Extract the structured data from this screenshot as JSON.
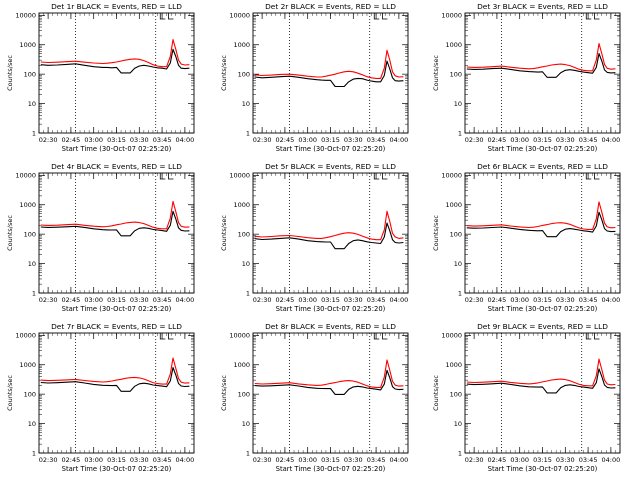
{
  "figure": {
    "panel_titles": [
      "Det 1r BLACK = Events, RED = LLD",
      "Det 2r BLACK = Events, RED = LLD",
      "Det 3r BLACK = Events, RED = LLD",
      "Det 4r BLACK = Events, RED = LLD",
      "Det 5r BLACK = Events, RED = LLD",
      "Det 6r BLACK = Events, RED = LLD",
      "Det 7r BLACK = Events, RED = LLD",
      "Det 8r BLACK = Events, RED = LLD",
      "Det 9r BLACK = Events, RED = LLD"
    ],
    "ylabel": "Counts/sec",
    "xlabel": "Start Time (30-Oct-07 02:25:20)"
  },
  "colors": {
    "events": "#000000",
    "lld": "#ff0000",
    "axes": "#000000"
  },
  "chart_data": {
    "type": "line",
    "layout": "3x3 grid",
    "yscale": "log",
    "ylim": [
      1,
      12000
    ],
    "xlim": [
      2.4,
      4.1
    ],
    "xtick_values": [
      2.5,
      2.75,
      3.0,
      3.25,
      3.5,
      3.75,
      4.0
    ],
    "xtick_labels": [
      "02:30",
      "02:45",
      "03:00",
      "03:15",
      "03:30",
      "03:45",
      "04:00"
    ],
    "ytick_values": [
      1,
      10,
      100,
      1000,
      10000
    ],
    "ytick_labels": [
      "1",
      "10",
      "100",
      "1000",
      "10000"
    ],
    "vlines_dotted": [
      2.8,
      3.68
    ],
    "bracket_times": [
      3.73,
      3.82
    ],
    "x": [
      2.42,
      2.5,
      2.6,
      2.7,
      2.8,
      2.9,
      3.0,
      3.1,
      3.15,
      3.2,
      3.25,
      3.3,
      3.35,
      3.4,
      3.45,
      3.5,
      3.55,
      3.6,
      3.65,
      3.7,
      3.75,
      3.8,
      3.84,
      3.87,
      3.9,
      3.93,
      3.96,
      4.0,
      4.05
    ],
    "panels": [
      {
        "title": "Det 1r BLACK = Events, RED = LLD",
        "series": [
          {
            "name": "Events",
            "values": [
              210,
              200,
              205,
              215,
              225,
              200,
              180,
              170,
              170,
              165,
              170,
              110,
              110,
              110,
              160,
              190,
              200,
              190,
              175,
              165,
              160,
              150,
              240,
              700,
              400,
              200,
              160,
              155,
              160
            ]
          },
          {
            "name": "LLD",
            "values": [
              260,
              250,
              255,
              265,
              275,
              255,
              240,
              230,
              235,
              245,
              260,
              280,
              300,
              320,
              330,
              320,
              290,
              250,
              210,
              190,
              180,
              180,
              400,
              1500,
              700,
              300,
              220,
              205,
              210
            ]
          }
        ]
      },
      {
        "title": "Det 2r BLACK = Events, RED = LLD",
        "series": [
          {
            "name": "Events",
            "values": [
              80,
              75,
              78,
              82,
              85,
              78,
              70,
              65,
              63,
              62,
              62,
              38,
              38,
              38,
              55,
              68,
              72,
              70,
              63,
              58,
              55,
              55,
              90,
              280,
              150,
              75,
              60,
              58,
              60
            ]
          },
          {
            "name": "LLD",
            "values": [
              95,
              90,
              93,
              98,
              100,
              93,
              85,
              80,
              80,
              85,
              92,
              100,
              110,
              120,
              125,
              120,
              108,
              95,
              82,
              75,
              72,
              72,
              160,
              650,
              300,
              120,
              88,
              80,
              82
            ]
          }
        ]
      },
      {
        "title": "Det 3r BLACK = Events, RED = LLD",
        "series": [
          {
            "name": "Events",
            "values": [
              150,
              145,
              148,
              155,
              160,
              145,
              130,
              122,
              120,
              118,
              120,
              78,
              78,
              78,
              112,
              135,
              142,
              135,
              125,
              118,
              112,
              108,
              170,
              500,
              280,
              140,
              115,
              110,
              112
            ]
          },
          {
            "name": "LLD",
            "values": [
              175,
              170,
              173,
              180,
              188,
              172,
              160,
              152,
              155,
              165,
              178,
              190,
              205,
              215,
              220,
              212,
              195,
              170,
              148,
              135,
              130,
              130,
              300,
              1100,
              500,
              215,
              158,
              148,
              152
            ]
          }
        ]
      },
      {
        "title": "Det 4r BLACK = Events, RED = LLD",
        "series": [
          {
            "name": "Events",
            "values": [
              175,
              170,
              172,
              178,
              185,
              170,
              152,
              142,
              140,
              138,
              140,
              88,
              88,
              88,
              130,
              158,
              165,
              158,
              145,
              138,
              132,
              125,
              200,
              600,
              330,
              165,
              135,
              128,
              130
            ]
          },
          {
            "name": "LLD",
            "values": [
              205,
              198,
              202,
              210,
              218,
              200,
              186,
              178,
              182,
              192,
              208,
              222,
              240,
              252,
              258,
              248,
              228,
              198,
              172,
              158,
              152,
              152,
              350,
              1300,
              580,
              250,
              185,
              172,
              176
            ]
          }
        ]
      },
      {
        "title": "Det 5r BLACK = Events, RED = LLD",
        "series": [
          {
            "name": "Events",
            "values": [
              70,
              66,
              68,
              72,
              75,
              68,
              60,
              56,
              55,
              54,
              54,
              32,
              32,
              32,
              48,
              60,
              64,
              60,
              55,
              52,
              50,
              48,
              80,
              240,
              130,
              65,
              52,
              50,
              52
            ]
          },
          {
            "name": "LLD",
            "values": [
              85,
              80,
              83,
              88,
              90,
              83,
              76,
              72,
              72,
              76,
              82,
              90,
              100,
              108,
              112,
              108,
              98,
              86,
              75,
              68,
              65,
              65,
              140,
              600,
              270,
              108,
              80,
              72,
              75
            ]
          }
        ]
      },
      {
        "title": "Det 6r BLACK = Events, RED = LLD",
        "series": [
          {
            "name": "Events",
            "values": [
              165,
              160,
              162,
              168,
              175,
              160,
              145,
              135,
              132,
              130,
              132,
              82,
              82,
              82,
              122,
              148,
              155,
              148,
              138,
              130,
              125,
              118,
              190,
              560,
              310,
              155,
              128,
              122,
              124
            ]
          },
          {
            "name": "LLD",
            "values": [
              195,
              188,
              192,
              200,
              208,
              190,
              176,
              168,
              172,
              182,
              198,
              212,
              228,
              240,
              246,
              236,
              216,
              188,
              163,
              150,
              145,
              145,
              330,
              1250,
              560,
              240,
              176,
              164,
              168
            ]
          }
        ]
      },
      {
        "title": "Det 7r BLACK = Events, RED = LLD",
        "series": [
          {
            "name": "Events",
            "values": [
              250,
              240,
              245,
              255,
              265,
              240,
              215,
              200,
              198,
              195,
              198,
              125,
              125,
              125,
              185,
              225,
              235,
              225,
              205,
              195,
              188,
              180,
              280,
              800,
              450,
              230,
              190,
              182,
              186
            ]
          },
          {
            "name": "LLD",
            "values": [
              300,
              290,
              295,
              305,
              318,
              292,
              272,
              260,
              265,
              280,
              300,
              320,
              345,
              362,
              370,
              356,
              328,
              285,
              248,
              228,
              220,
              220,
              480,
              1700,
              760,
              340,
              255,
              238,
              244
            ]
          }
        ]
      },
      {
        "title": "Det 8r BLACK = Events, RED = LLD",
        "series": [
          {
            "name": "Events",
            "values": [
              195,
              188,
              192,
              200,
              208,
              190,
              170,
              158,
              156,
              154,
              156,
              98,
              98,
              98,
              145,
              176,
              185,
              176,
              162,
              154,
              148,
              140,
              220,
              650,
              360,
              180,
              150,
              143,
              146
            ]
          },
          {
            "name": "LLD",
            "values": [
              230,
              222,
              226,
              235,
              245,
              224,
              208,
              198,
              202,
              214,
              232,
              248,
              268,
              282,
              290,
              278,
              255,
              222,
              192,
              176,
              170,
              170,
              380,
              1450,
              640,
              275,
              202,
              188,
              193
            ]
          }
        ]
      },
      {
        "title": "Det 9r BLACK = Events, RED = LLD",
        "series": [
          {
            "name": "Events",
            "values": [
              220,
              212,
              216,
              225,
              235,
              214,
              192,
              178,
              176,
              174,
              176,
              110,
              110,
              110,
              164,
              198,
              208,
              198,
              182,
              174,
              166,
              158,
              245,
              720,
              400,
              205,
              170,
              162,
              165
            ]
          },
          {
            "name": "LLD",
            "values": [
              260,
              250,
              255,
              265,
              276,
              252,
              234,
              223,
              228,
              242,
              262,
              280,
              302,
              318,
              326,
              312,
              288,
              250,
              216,
              198,
              192,
              192,
              420,
              1550,
              690,
              300,
              222,
              208,
              213
            ]
          }
        ]
      }
    ]
  }
}
